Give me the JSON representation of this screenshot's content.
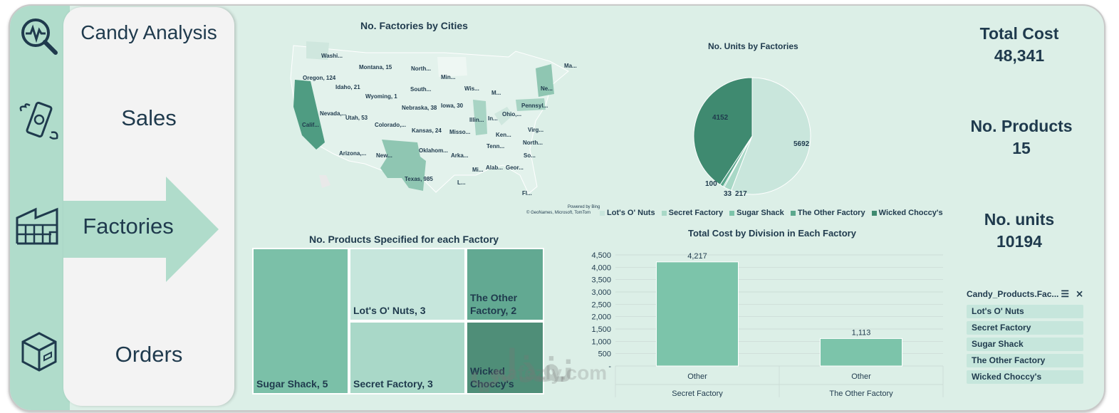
{
  "app": {
    "title": "Candy Analysis"
  },
  "nav": {
    "items": [
      {
        "label": "Sales",
        "icon": "money-wings-icon"
      },
      {
        "label": "Factories",
        "icon": "factory-icon",
        "active": true
      },
      {
        "label": "Orders",
        "icon": "box-icon"
      }
    ],
    "top_icon": "analytics-magnifier-icon"
  },
  "kpis": {
    "total_cost": {
      "label": "Total Cost",
      "value": "48,341"
    },
    "products": {
      "label": "No. Products",
      "value": "15"
    },
    "units": {
      "label": "No. units",
      "value": "10194"
    }
  },
  "map": {
    "title": "No. Factories by Cities",
    "labels": [
      "Washi...",
      "Montana, 15",
      "North...",
      "Ma...",
      "Min...",
      "Oregon, 124",
      "Idaho, 21",
      "Wis...",
      "M...",
      "Ne...",
      "Wyoming, 1",
      "South...",
      "Nevada,...",
      "Nebraska, 38",
      "Iowa, 30",
      "Ohio,...",
      "Pennsyl...",
      "Utah, 53",
      "Illin...",
      "In...",
      "Calif...",
      "Colorado,...",
      "Kansas, 24",
      "Misso...",
      "Virg...",
      "Ken...",
      "North...",
      "Arizona,...",
      "Oklahom...",
      "Tenn...",
      "New...",
      "Arka...",
      "So...",
      "Texas, 985",
      "Mi...",
      "Alab...",
      "Geor...",
      "L...",
      "Fl..."
    ],
    "attribution1": "Powered by Bing",
    "attribution2": "© GeoNames, Microsoft, TomTom"
  },
  "pie": {
    "title": "No. Units by Factories",
    "colors": {
      "lots_o_nuts": "#c9e6dc",
      "secret_factory": "#a8d8c6",
      "sugar_shack": "#7dc4aa",
      "the_other_factory": "#5ba88d",
      "wicked_choccys": "#3f8a70"
    }
  },
  "treemap": {
    "title": "No. Products Specified for each Factory"
  },
  "bar": {
    "title": "Total Cost by Division in Each Factory"
  },
  "slicer": {
    "title": "Candy_Products.Fac...",
    "items": [
      "Lot's O' Nuts",
      "Secret Factory",
      "Sugar Shack",
      "The Other Factory",
      "Wicked Choccy's"
    ]
  },
  "watermark": {
    "arabic": "نفذلي",
    "latin": "nafezly.com"
  },
  "chart_data": [
    {
      "type": "pie",
      "title": "No. Units by Factories",
      "categories": [
        "Lot's O' Nuts",
        "Secret Factory",
        "Sugar Shack",
        "The Other Factory",
        "Wicked Choccy's"
      ],
      "values": [
        5692,
        217,
        33,
        100,
        4152
      ],
      "legend": "bottom"
    },
    {
      "type": "treemap",
      "title": "No. Products Specified for each Factory",
      "categories": [
        "Sugar Shack",
        "Lot's O' Nuts",
        "Secret Factory",
        "The Other Factory",
        "Wicked Choccy's"
      ],
      "values": [
        5,
        3,
        3,
        2,
        2
      ],
      "labels": [
        "Sugar Shack, 5",
        "Lot's O' Nuts, 3",
        "Secret Factory, 3",
        "The Other Factory, 2",
        "Wicked Choccy's"
      ]
    },
    {
      "type": "bar",
      "title": "Total Cost by Division in Each Factory",
      "categories": [
        {
          "division": "Other",
          "factory": "Secret Factory"
        },
        {
          "division": "Other",
          "factory": "The Other Factory"
        }
      ],
      "values": [
        4217,
        1113
      ],
      "value_labels": [
        "4,217",
        "1,113"
      ],
      "yticks": [
        "4,500",
        "4,000",
        "3,500",
        "3,000",
        "2,500",
        "2,000",
        "1,500",
        "1,000",
        "500",
        "-"
      ],
      "ylim": [
        0,
        4500
      ],
      "grid": true
    }
  ]
}
